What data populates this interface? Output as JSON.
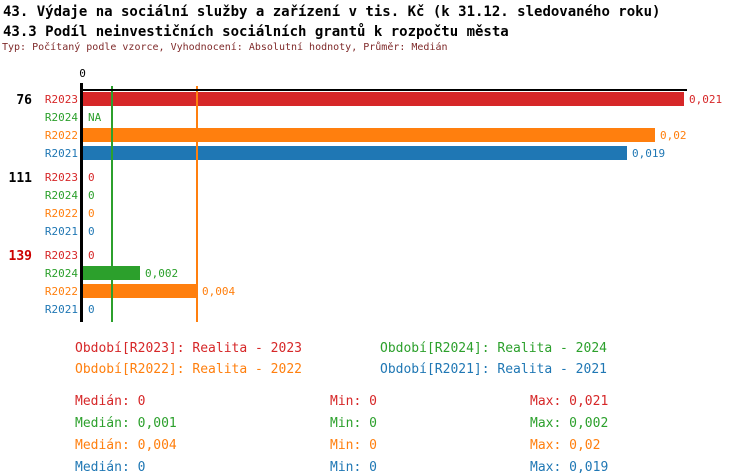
{
  "header": {
    "title_line1": "43. Výdaje na sociální služby a zařízení v tis. Kč (k 31.12. sledovaného roku)",
    "title_line2": "43.3 Podíl neinvestičních sociálních grantů k rozpočtu města",
    "subtitle": "Typ: Počítaný podle vzorce, Vyhodnocení: Absolutní hodnoty, Průměr: Medián"
  },
  "colors": {
    "R2023": "#d62728",
    "R2024": "#2ca02c",
    "R2022": "#ff7f0e",
    "R2021": "#1f77b4",
    "axis": "#000000",
    "subtitle_text": "#7f2a2a",
    "group_label_default": "#000000",
    "group_label_highlight": "#cc0000"
  },
  "chart_data": {
    "type": "bar",
    "orientation": "horizontal",
    "title": "43.3 Podíl neinvestičních sociálních grantů k rozpočtu města",
    "x_axis": {
      "zero_label": "0",
      "min": 0,
      "max": 0.021,
      "grid": false
    },
    "series_order": [
      "R2023",
      "R2024",
      "R2022",
      "R2021"
    ],
    "groups": [
      {
        "label": "76",
        "highlight": false,
        "bars": [
          {
            "series": "R2023",
            "value": 0.021,
            "display": "0,021"
          },
          {
            "series": "R2024",
            "value": null,
            "display": "NA"
          },
          {
            "series": "R2022",
            "value": 0.02,
            "display": "0,02"
          },
          {
            "series": "R2021",
            "value": 0.019,
            "display": "0,019"
          }
        ]
      },
      {
        "label": "111",
        "highlight": false,
        "bars": [
          {
            "series": "R2023",
            "value": 0,
            "display": "0"
          },
          {
            "series": "R2024",
            "value": 0,
            "display": "0"
          },
          {
            "series": "R2022",
            "value": 0,
            "display": "0"
          },
          {
            "series": "R2021",
            "value": 0,
            "display": "0"
          }
        ]
      },
      {
        "label": "139",
        "highlight": true,
        "bars": [
          {
            "series": "R2023",
            "value": 0,
            "display": "0"
          },
          {
            "series": "R2024",
            "value": 0.002,
            "display": "0,002"
          },
          {
            "series": "R2022",
            "value": 0.004,
            "display": "0,004"
          },
          {
            "series": "R2021",
            "value": 0,
            "display": "0"
          }
        ]
      }
    ],
    "median_lines": [
      {
        "series": "R2024",
        "value": 0.001
      },
      {
        "series": "R2022",
        "value": 0.004
      }
    ],
    "legend": [
      {
        "series": "R2023",
        "label": "Období[R2023]: Realita - 2023"
      },
      {
        "series": "R2024",
        "label": "Období[R2024]: Realita - 2024"
      },
      {
        "series": "R2022",
        "label": "Období[R2022]: Realita - 2022"
      },
      {
        "series": "R2021",
        "label": "Období[R2021]: Realita - 2021"
      }
    ],
    "stats_labels": {
      "median": "Medián",
      "min": "Min",
      "max": "Max"
    },
    "stats": [
      {
        "series": "R2023",
        "median": "0",
        "min": "0",
        "max": "0,021"
      },
      {
        "series": "R2024",
        "median": "0,001",
        "min": "0",
        "max": "0,002"
      },
      {
        "series": "R2022",
        "median": "0,004",
        "min": "0",
        "max": "0,02"
      },
      {
        "series": "R2021",
        "median": "0",
        "min": "0",
        "max": "0,019"
      }
    ]
  }
}
